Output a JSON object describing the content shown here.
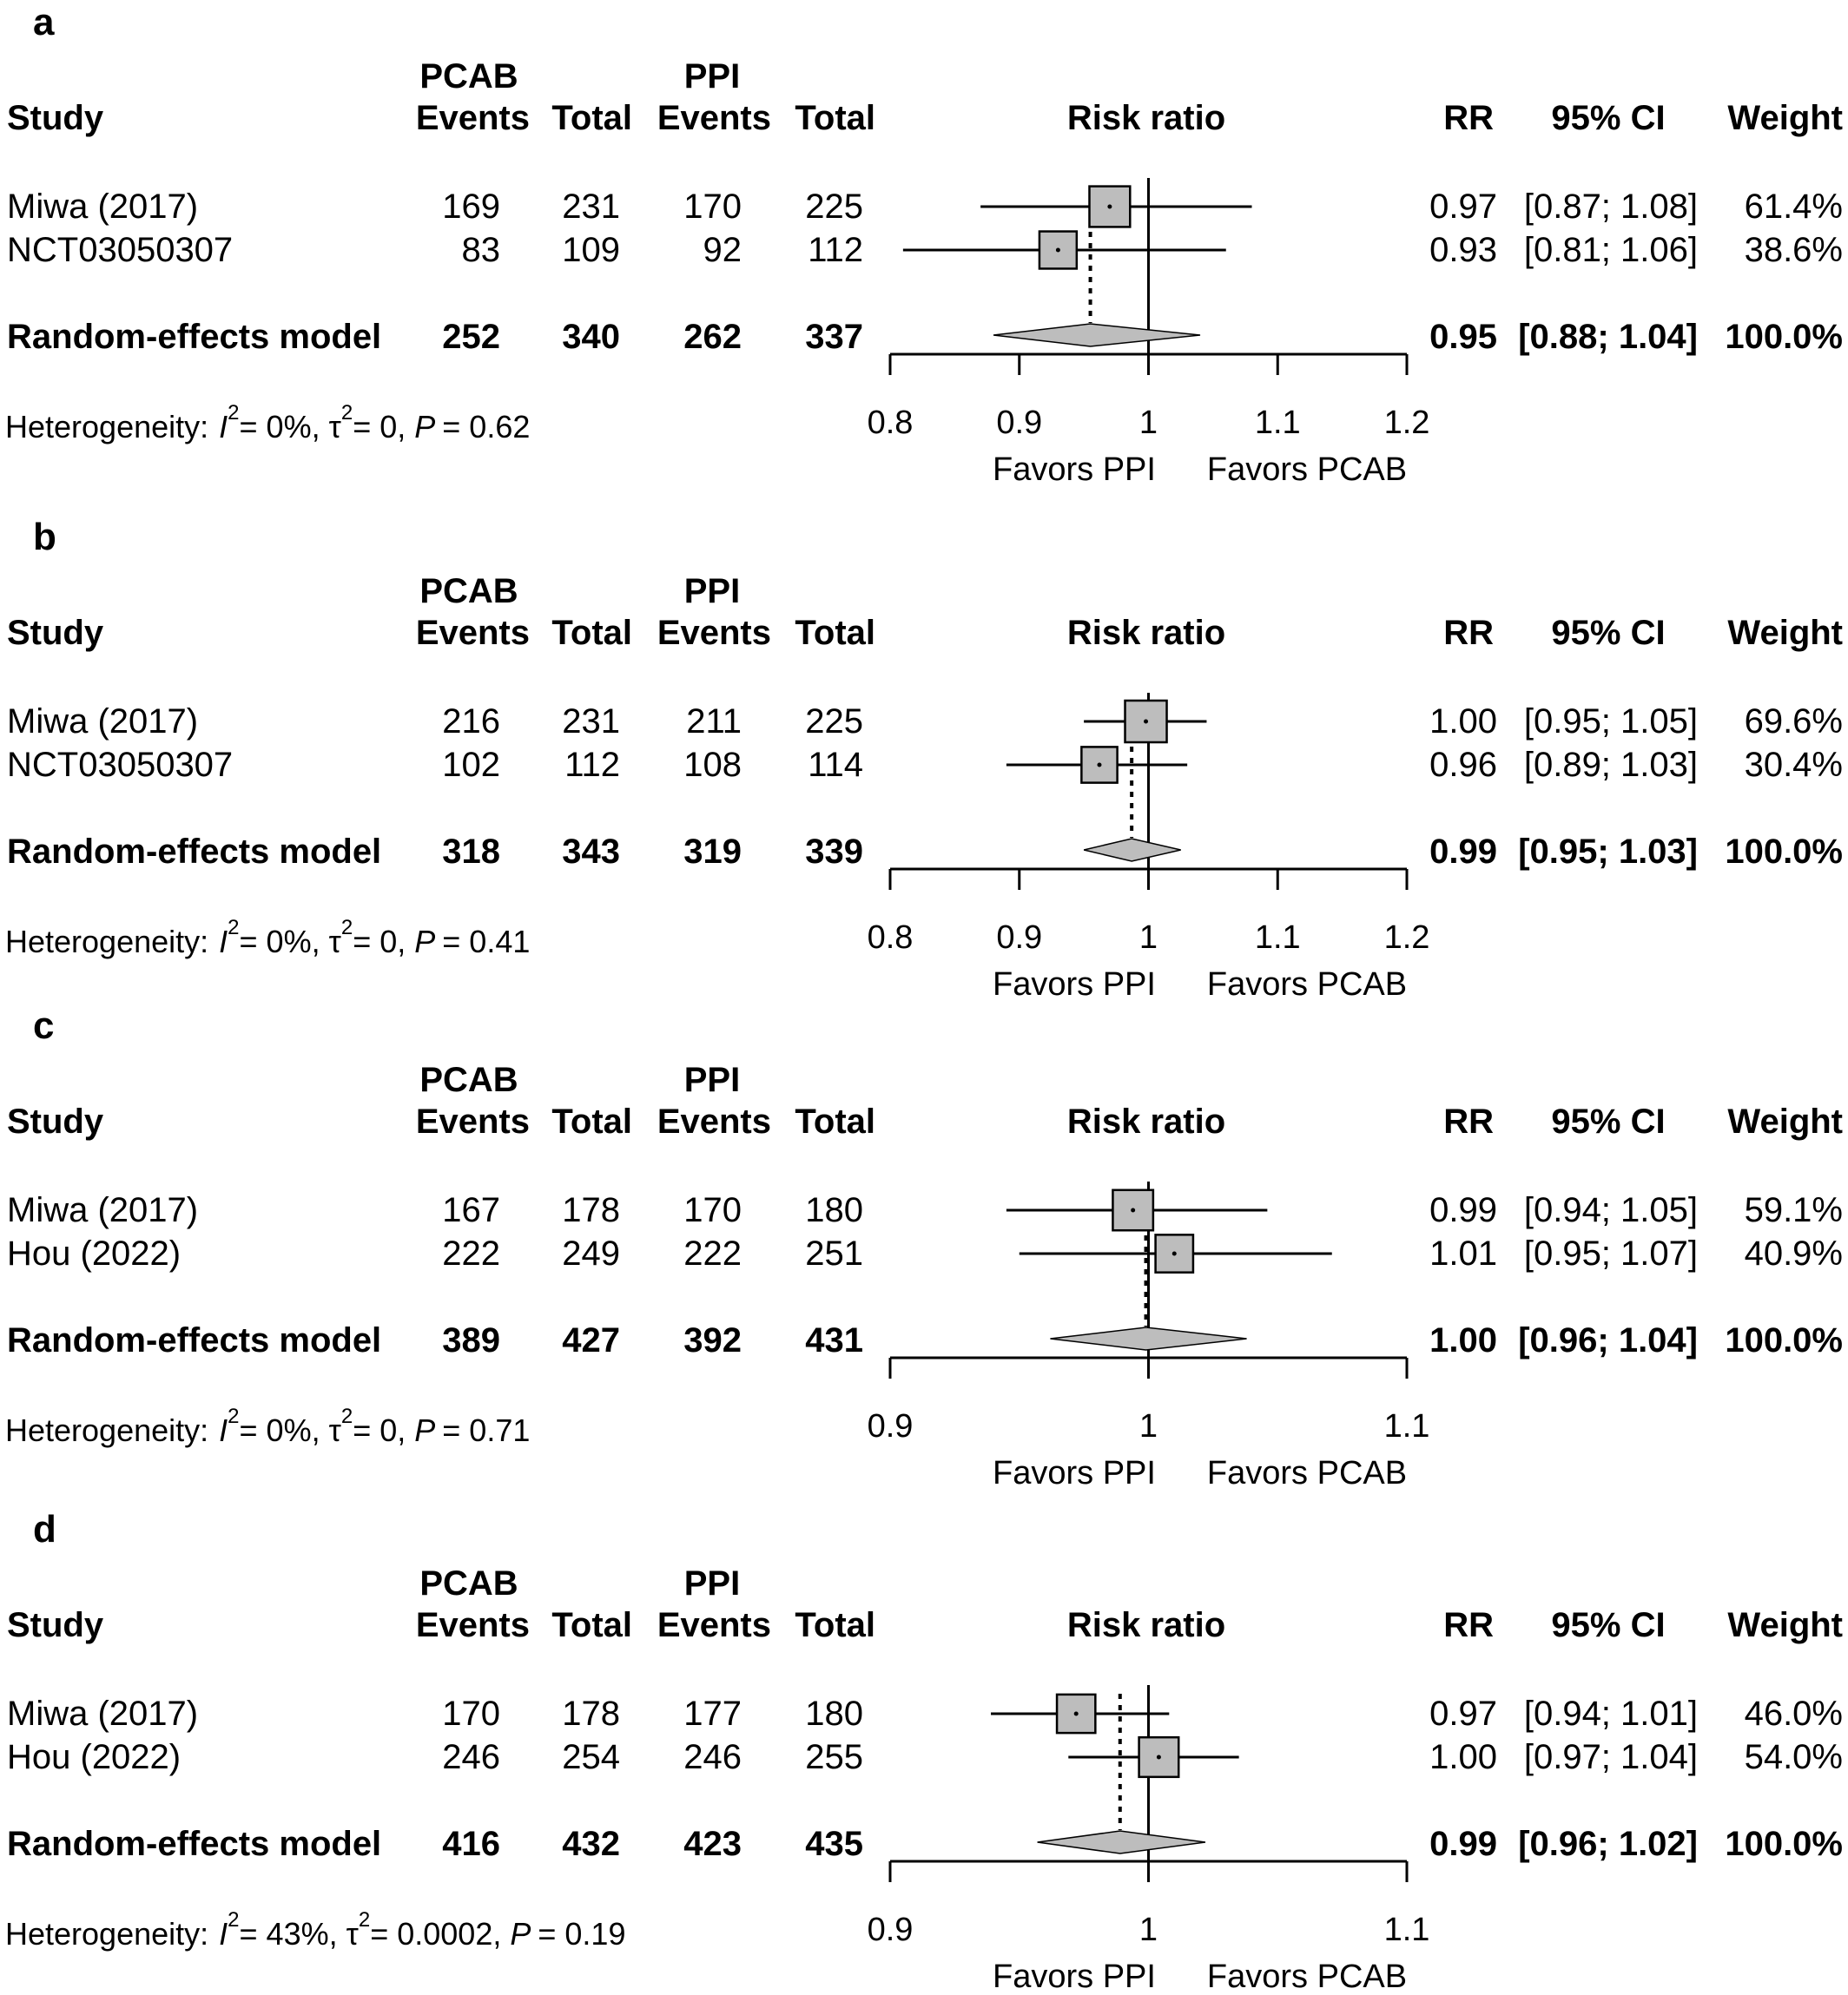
{
  "columns": {
    "pcab_group": "PCAB",
    "ppi_group": "PPI",
    "study": "Study",
    "events": "Events",
    "total": "Total",
    "risk_ratio": "Risk ratio",
    "rr": "RR",
    "ci": "95% CI",
    "weight": "Weight"
  },
  "favors_left": "Favors PPI",
  "favors_right": "Favors PCAB",
  "chart_data": [
    {
      "type": "forest",
      "panel_label": "a",
      "xlim": [
        0.8,
        1.2
      ],
      "ticks": [
        "0.8",
        "0.9",
        "1",
        "1.1",
        "1.2"
      ],
      "tick_values": [
        0.8,
        0.9,
        1.0,
        1.1,
        1.2
      ],
      "studies": [
        {
          "name": "Miwa (2017)",
          "pcab_events": "169",
          "pcab_total": "231",
          "ppi_events": "170",
          "ppi_total": "225",
          "rr_text": "0.97",
          "ci_text": "[0.87; 1.08]",
          "weight_text": "61.4%",
          "rr": 0.97,
          "lo": 0.87,
          "hi": 1.08,
          "weight": 61.4
        },
        {
          "name": "NCT03050307",
          "pcab_events": "83",
          "pcab_total": "109",
          "ppi_events": "92",
          "ppi_total": "112",
          "rr_text": "0.93",
          "ci_text": "[0.81; 1.06]",
          "weight_text": "38.6%",
          "rr": 0.93,
          "lo": 0.81,
          "hi": 1.06,
          "weight": 38.6
        }
      ],
      "model": {
        "name": "Random-effects model",
        "pcab_events": "252",
        "pcab_total": "340",
        "ppi_events": "262",
        "ppi_total": "337",
        "rr_text": "0.95",
        "ci_text": "[0.88; 1.04]",
        "weight_text": "100.0%",
        "rr": 0.955,
        "lo": 0.88,
        "hi": 1.04
      },
      "heterogeneity": {
        "prefix": "Heterogeneity: ",
        "i2": "= 0%, ",
        "tau2": "= 0, ",
        "p": "= 0.62"
      }
    },
    {
      "type": "forest",
      "panel_label": "b",
      "xlim": [
        0.8,
        1.2
      ],
      "ticks": [
        "0.8",
        "0.9",
        "1",
        "1.1",
        "1.2"
      ],
      "tick_values": [
        0.8,
        0.9,
        1.0,
        1.1,
        1.2
      ],
      "studies": [
        {
          "name": "Miwa (2017)",
          "pcab_events": "216",
          "pcab_total": "231",
          "ppi_events": "211",
          "ppi_total": "225",
          "rr_text": "1.00",
          "ci_text": "[0.95; 1.05]",
          "weight_text": "69.6%",
          "rr": 0.998,
          "lo": 0.95,
          "hi": 1.045,
          "weight": 69.6
        },
        {
          "name": "NCT03050307",
          "pcab_events": "102",
          "pcab_total": "112",
          "ppi_events": "108",
          "ppi_total": "114",
          "rr_text": "0.96",
          "ci_text": "[0.89; 1.03]",
          "weight_text": "30.4%",
          "rr": 0.962,
          "lo": 0.89,
          "hi": 1.03,
          "weight": 30.4
        }
      ],
      "model": {
        "name": "Random-effects model",
        "pcab_events": "318",
        "pcab_total": "343",
        "ppi_events": "319",
        "ppi_total": "339",
        "rr_text": "0.99",
        "ci_text": "[0.95; 1.03]",
        "weight_text": "100.0%",
        "rr": 0.987,
        "lo": 0.95,
        "hi": 1.025
      },
      "heterogeneity": {
        "prefix": "Heterogeneity: ",
        "i2": "= 0%, ",
        "tau2": "= 0, ",
        "p": "= 0.41"
      }
    },
    {
      "type": "forest",
      "panel_label": "c",
      "xlim": [
        0.9,
        1.1
      ],
      "ticks": [
        "0.9",
        "1",
        "1.1"
      ],
      "tick_values": [
        0.9,
        1.0,
        1.1
      ],
      "studies": [
        {
          "name": "Miwa (2017)",
          "pcab_events": "167",
          "pcab_total": "178",
          "ppi_events": "170",
          "ppi_total": "180",
          "rr_text": "0.99",
          "ci_text": "[0.94; 1.05]",
          "weight_text": "59.1%",
          "rr": 0.994,
          "lo": 0.945,
          "hi": 1.046,
          "weight": 59.1
        },
        {
          "name": "Hou (2022)",
          "pcab_events": "222",
          "pcab_total": "249",
          "ppi_events": "222",
          "ppi_total": "251",
          "rr_text": "1.01",
          "ci_text": "[0.95; 1.07]",
          "weight_text": "40.9%",
          "rr": 1.01,
          "lo": 0.95,
          "hi": 1.071,
          "weight": 40.9
        }
      ],
      "model": {
        "name": "Random-effects model",
        "pcab_events": "389",
        "pcab_total": "427",
        "ppi_events": "392",
        "ppi_total": "431",
        "rr_text": "1.00",
        "ci_text": "[0.96; 1.04]",
        "weight_text": "100.0%",
        "rr": 0.999,
        "lo": 0.962,
        "hi": 1.038
      },
      "heterogeneity": {
        "prefix": "Heterogeneity: ",
        "i2": "= 0%, ",
        "tau2": "= 0, ",
        "p": "= 0.71"
      }
    },
    {
      "type": "forest",
      "panel_label": "d",
      "xlim": [
        0.9,
        1.1
      ],
      "ticks": [
        "0.9",
        "1",
        "1.1"
      ],
      "tick_values": [
        0.9,
        1.0,
        1.1
      ],
      "studies": [
        {
          "name": "Miwa (2017)",
          "pcab_events": "170",
          "pcab_total": "178",
          "ppi_events": "177",
          "ppi_total": "180",
          "rr_text": "0.97",
          "ci_text": "[0.94; 1.01]",
          "weight_text": "46.0%",
          "rr": 0.972,
          "lo": 0.939,
          "hi": 1.008,
          "weight": 46.0
        },
        {
          "name": "Hou (2022)",
          "pcab_events": "246",
          "pcab_total": "254",
          "ppi_events": "246",
          "ppi_total": "255",
          "rr_text": "1.00",
          "ci_text": "[0.97; 1.04]",
          "weight_text": "54.0%",
          "rr": 1.004,
          "lo": 0.969,
          "hi": 1.035,
          "weight": 54.0
        }
      ],
      "model": {
        "name": "Random-effects model",
        "pcab_events": "416",
        "pcab_total": "432",
        "ppi_events": "423",
        "ppi_total": "435",
        "rr_text": "0.99",
        "ci_text": "[0.96; 1.02]",
        "weight_text": "100.0%",
        "rr": 0.989,
        "lo": 0.957,
        "hi": 1.022
      },
      "heterogeneity": {
        "prefix": "Heterogeneity: ",
        "i2": "= 43%, ",
        "tau2": "= 0.0002, ",
        "p": "= 0.19"
      }
    }
  ]
}
